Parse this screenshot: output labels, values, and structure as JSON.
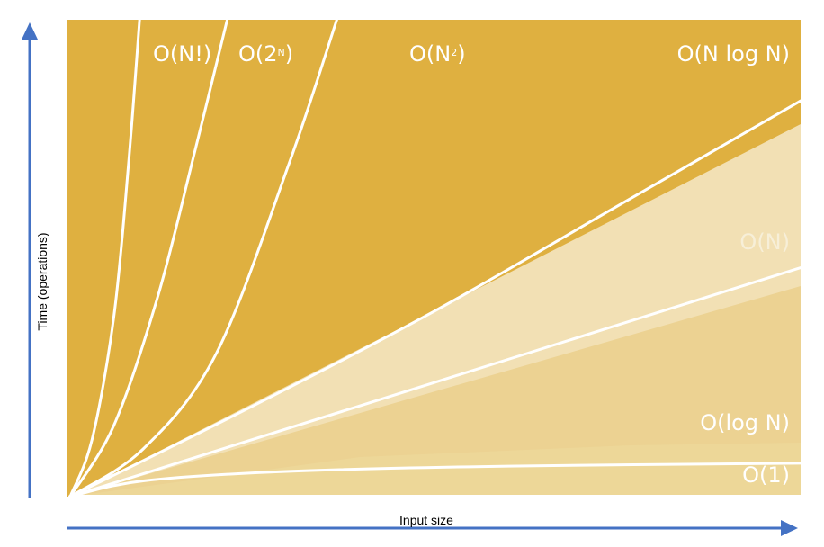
{
  "chart_data": {
    "type": "area",
    "xlabel": "Input size",
    "ylabel": "Time (operations)",
    "x_range": [
      0,
      1
    ],
    "y_range": [
      0,
      1
    ],
    "grid": false,
    "legend": "none",
    "series": [
      {
        "name": "O(N!)",
        "label_parts": [
          "O(N!)"
        ],
        "function": "factorial",
        "x": [
          0,
          0.03,
          0.06,
          0.08,
          0.095
        ],
        "y": [
          0,
          0.12,
          0.38,
          0.7,
          1.0
        ]
      },
      {
        "name": "O(2ᴺ)",
        "label_parts": [
          "O(2",
          "N",
          ")"
        ],
        "function": "exponential",
        "x": [
          0,
          0.06,
          0.12,
          0.17,
          0.215
        ],
        "y": [
          0,
          0.15,
          0.42,
          0.72,
          1.0
        ]
      },
      {
        "name": "O(N²)",
        "label_parts": [
          "O(N",
          "2",
          ")"
        ],
        "function": "quadratic",
        "x": [
          0,
          0.1,
          0.2,
          0.3,
          0.365
        ],
        "y": [
          0,
          0.1,
          0.3,
          0.7,
          1.0
        ]
      },
      {
        "name": "O(N log N)",
        "label_parts": [
          "O(N log N)"
        ],
        "function": "linearithmic",
        "x": [
          0,
          0.25,
          0.5,
          0.75,
          1.0
        ],
        "y": [
          0,
          0.19,
          0.39,
          0.61,
          0.83
        ]
      },
      {
        "name": "O(N)",
        "label_parts": [
          "O(N)"
        ],
        "function": "linear",
        "x": [
          0,
          0.25,
          0.5,
          0.75,
          1.0
        ],
        "y": [
          0,
          0.12,
          0.24,
          0.36,
          0.48
        ]
      },
      {
        "name": "O(log N)",
        "label_parts": [
          "O(log N)"
        ],
        "function": "logarithmic",
        "x": [
          0,
          0.1,
          0.3,
          0.6,
          1.0
        ],
        "y": [
          0,
          0.033,
          0.053,
          0.064,
          0.07
        ]
      },
      {
        "name": "O(1)",
        "label_parts": [
          "O(1)"
        ],
        "function": "constant",
        "x": [
          0,
          1.0
        ],
        "y": [
          0,
          0
        ]
      }
    ],
    "colors": {
      "background_dark": "#dfb040",
      "band_light": "#f2e0b4",
      "region_mid": "#ecd292",
      "region_low": "#edd798",
      "curve": "#ffffff",
      "axis_arrow": "#4472c4"
    }
  }
}
